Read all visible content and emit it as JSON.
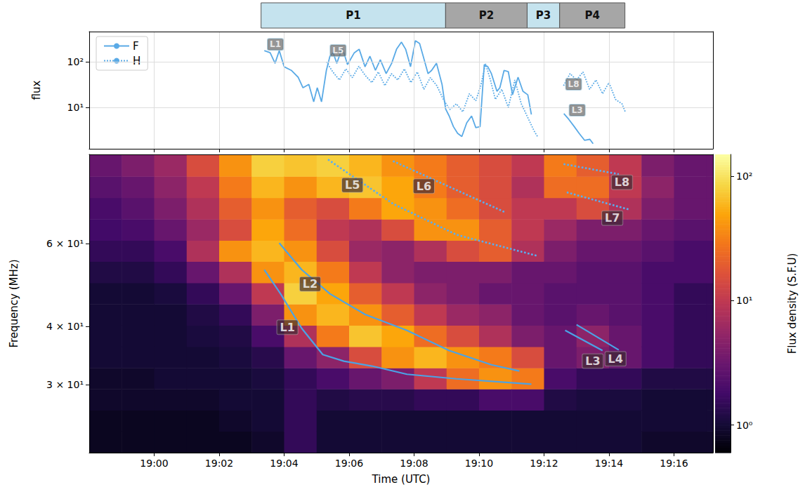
{
  "chart_data": [
    {
      "type": "line",
      "ylabel": "flux",
      "xlim": [
        1138,
        1157.2
      ],
      "ylim": [
        1.24,
        460
      ],
      "xticks": [
        1140,
        1142,
        1144,
        1146,
        1148,
        1150,
        1152,
        1154,
        1156
      ],
      "yticks": [
        {
          "value": 10,
          "label": "10¹"
        },
        {
          "value": 100,
          "label": "10²"
        }
      ],
      "log": "y",
      "grid": true,
      "legend": "upper left",
      "tick_labels": "y",
      "phases": [
        {
          "label": "P1",
          "start": 1143.29,
          "end": 1148.97,
          "color": "#c5e3ee"
        },
        {
          "label": "P2",
          "start": 1148.97,
          "end": 1151.48,
          "color": "#a6a6a6"
        },
        {
          "label": "P3",
          "start": 1151.48,
          "end": 1152.48,
          "color": "#c5e3ee"
        },
        {
          "label": "P4",
          "start": 1152.48,
          "end": 1154.49,
          "color": "#a6a6a6"
        }
      ],
      "series": [
        {
          "name": "F",
          "color": "#5aaae6",
          "line_style": "solid",
          "x": [
            1143.39,
            1143.57,
            1143.72,
            1143.85,
            1144.0,
            1144.22,
            1144.43,
            1144.58,
            1144.76,
            1144.91,
            1145.02,
            1145.15,
            1145.3,
            1145.41,
            1145.51,
            1145.62,
            1145.79,
            1145.95,
            1146.16,
            1146.31,
            1146.49,
            1146.64,
            1146.81,
            1146.96,
            1147.14,
            1147.31,
            1147.46,
            1147.61,
            1147.74,
            1147.89,
            1148.04,
            1148.17,
            1148.28,
            1148.43,
            1148.54,
            1148.69,
            1148.86,
            1148.97,
            1149.08,
            1149.21,
            1149.34,
            1149.47,
            1149.62,
            1149.77,
            1149.9,
            1150.03,
            1150.16,
            1150.27,
            1150.38,
            1150.55,
            1150.64,
            1150.77,
            1150.9,
            1151.03,
            1151.2,
            1151.35,
            1151.5,
            1151.61,
            1152.1,
            1152.61,
            1152.76,
            1152.93,
            1153.08,
            1153.25,
            1153.41,
            1153.51
          ],
          "values": [
            176,
            158,
            93,
            176,
            78,
            65,
            46,
            27,
            32,
            13.3,
            27,
            13.3,
            65,
            133,
            158,
            93,
            203,
            87,
            158,
            189,
            78,
            133,
            65,
            111,
            55,
            93,
            189,
            270,
            189,
            78,
            290,
            251,
            133,
            55,
            65,
            93,
            32,
            9.3,
            6.5,
            3.8,
            2.7,
            2.3,
            4.6,
            6.5,
            3.6,
            3.8,
            87,
            78,
            55,
            22.6,
            27,
            65,
            61,
            18.9,
            46,
            22.6,
            18.9,
            7.0,
            null,
            7.3,
            5.5,
            3.8,
            2.7,
            1.9,
            2.0,
            1.6
          ]
        },
        {
          "name": "H",
          "color": "#5aaae6",
          "line_style": "dotted",
          "x": [
            1145.3,
            1145.5,
            1145.7,
            1145.9,
            1146.1,
            1146.3,
            1146.5,
            1146.7,
            1146.9,
            1147.1,
            1147.3,
            1147.5,
            1147.7,
            1147.9,
            1148.1,
            1148.3,
            1148.5,
            1148.7,
            1148.9,
            1149.1,
            1149.3,
            1149.5,
            1149.7,
            1149.9,
            1150.05,
            1150.2,
            1150.35,
            1150.5,
            1150.7,
            1150.9,
            1151.1,
            1151.3,
            1151.5,
            1151.7,
            1151.8,
            1152.2,
            1152.6,
            1152.8,
            1153.0,
            1153.2,
            1153.4,
            1153.6,
            1153.8,
            1154.0,
            1154.2,
            1154.4,
            1154.5
          ],
          "values": [
            100,
            60,
            40,
            70,
            45,
            80,
            50,
            35,
            60,
            30,
            55,
            40,
            70,
            35,
            60,
            25,
            45,
            30,
            15,
            9,
            12,
            8,
            20,
            14,
            30,
            90,
            40,
            15,
            25,
            10,
            40,
            12,
            6,
            3,
            2.3,
            null,
            30,
            55,
            40,
            60,
            25,
            40,
            20,
            35,
            15,
            12,
            8
          ]
        }
      ],
      "annotations": [
        {
          "text": "L1",
          "x": 1143.73,
          "y": 242
        },
        {
          "text": "L5",
          "x": 1145.66,
          "y": 176
        },
        {
          "text": "L8",
          "x": 1152.91,
          "y": 32.2
        },
        {
          "text": "L3",
          "x": 1153.02,
          "y": 8.7
        }
      ]
    },
    {
      "type": "heatmap",
      "xlabel": "Time (UTC)",
      "ylabel": "Frequency (MHz)",
      "xlim": [
        1138,
        1157.2
      ],
      "ylim": [
        21.5,
        93
      ],
      "xticks": [
        {
          "value": 1140,
          "label": "19:00"
        },
        {
          "value": 1142,
          "label": "19:02"
        },
        {
          "value": 1144,
          "label": "19:04"
        },
        {
          "value": 1146,
          "label": "19:06"
        },
        {
          "value": 1148,
          "label": "19:08"
        },
        {
          "value": 1150,
          "label": "19:10"
        },
        {
          "value": 1152,
          "label": "19:12"
        },
        {
          "value": 1154,
          "label": "19:14"
        },
        {
          "value": 1156,
          "label": "19:16"
        }
      ],
      "yticks": [
        {
          "value": 30,
          "label": "3 × 10¹"
        },
        {
          "value": 40,
          "label": "4 × 10¹"
        },
        {
          "value": 60,
          "label": "6 × 10¹"
        }
      ],
      "log": "y",
      "grid": false,
      "time_edges": [
        1138,
        1139,
        1140,
        1141,
        1142,
        1143,
        1144,
        1145,
        1146,
        1147,
        1148,
        1149,
        1150,
        1151,
        1152,
        1153,
        1154,
        1155,
        1156,
        1157,
        1157.2
      ],
      "freq_edges": [
        21.5,
        23.9,
        26.5,
        29.4,
        32.6,
        36.2,
        40.2,
        44.6,
        49.5,
        55.0,
        61.0,
        67.7,
        75.2,
        83.5,
        93.0
      ],
      "values": [
        [
          0.8,
          0.8,
          0.9,
          0.9,
          1,
          1,
          1,
          1,
          1.2,
          1.5,
          1.8,
          2,
          2.5,
          3
        ],
        [
          0.8,
          0.8,
          0.9,
          0.9,
          1,
          1,
          1,
          1,
          1.2,
          1.5,
          2,
          2.5,
          3,
          4
        ],
        [
          0.8,
          0.8,
          0.9,
          1,
          1,
          1,
          1,
          1.1,
          1.5,
          2,
          3,
          4,
          5,
          6
        ],
        [
          0.8,
          0.8,
          0.9,
          1,
          1,
          1.1,
          1.2,
          1.5,
          3,
          8,
          6,
          8,
          10,
          15
        ],
        [
          0.8,
          0.9,
          1,
          1,
          1.1,
          1.2,
          1.5,
          3,
          8,
          40,
          15,
          20,
          30,
          40
        ],
        [
          0.9,
          1,
          1,
          1.1,
          1.3,
          2,
          4,
          10,
          40,
          60,
          50,
          40,
          60,
          80
        ],
        [
          1.5,
          1.5,
          1.5,
          1.5,
          3,
          8,
          40,
          80,
          60,
          40,
          25,
          20,
          40,
          70
        ],
        [
          1,
          1,
          1.2,
          2,
          5,
          30,
          60,
          50,
          30,
          15,
          10,
          15,
          60,
          80
        ],
        [
          1,
          1,
          1.3,
          3,
          15,
          70,
          40,
          20,
          10,
          6,
          8,
          30,
          70,
          60
        ],
        [
          1,
          1,
          1.3,
          4,
          40,
          50,
          20,
          10,
          5,
          5,
          15,
          50,
          50,
          40
        ],
        [
          1,
          1,
          1.5,
          10,
          60,
          25,
          10,
          5,
          4,
          8,
          40,
          40,
          30,
          30
        ],
        [
          1,
          1,
          1.5,
          25,
          40,
          15,
          6,
          4,
          4,
          15,
          40,
          25,
          20,
          20
        ],
        [
          1,
          1,
          2,
          40,
          30,
          8,
          5,
          3,
          4,
          20,
          20,
          15,
          15,
          15
        ],
        [
          1,
          1,
          2,
          30,
          15,
          4,
          3,
          3,
          3,
          8,
          10,
          10,
          8,
          10
        ],
        [
          1,
          1,
          1.2,
          2,
          3,
          3,
          2.5,
          2.5,
          3,
          4,
          6,
          10,
          25,
          30
        ],
        [
          1,
          1,
          1.1,
          1.5,
          4,
          5,
          3,
          2.5,
          2.5,
          3,
          4,
          15,
          25,
          20
        ],
        [
          1,
          1,
          1.1,
          1.5,
          3,
          3,
          2.5,
          2.5,
          2.5,
          3,
          4,
          8,
          10,
          10
        ],
        [
          0.9,
          1,
          1,
          1.2,
          2,
          2,
          2,
          2,
          2,
          2.5,
          3,
          4,
          5,
          4
        ],
        [
          0.9,
          1,
          1,
          1.2,
          1.5,
          1.5,
          1.5,
          1.5,
          2,
          2,
          2.5,
          3,
          3,
          3
        ],
        [
          0.9,
          1,
          1,
          1.2,
          1.5,
          1.5,
          1.5,
          1.5,
          2,
          2,
          2.5,
          3,
          3,
          3
        ]
      ],
      "colorbar": {
        "label": "Flux density (S.F.U)",
        "range": [
          0.6,
          150
        ],
        "ticks": [
          {
            "value": 1,
            "label": "10⁰"
          },
          {
            "value": 10,
            "label": "10¹"
          },
          {
            "value": 100,
            "label": "10²"
          }
        ]
      },
      "tracks": [
        {
          "text": "L1",
          "color": "#4ba3e6",
          "line_style": "solid",
          "x": [
            1143.39,
            1143.89,
            1144.54,
            1145.19,
            1145.84,
            1146.7,
            1147.78,
            1149.3,
            1151.61
          ],
          "values": [
            52.8,
            46.9,
            39.6,
            34.8,
            33.7,
            32.9,
            31.6,
            30.9,
            30.1
          ],
          "label_x": 1144.1,
          "label_y": 39.8
        },
        {
          "text": "L2",
          "color": "#4ba3e6",
          "line_style": "solid",
          "x": [
            1143.85,
            1144.54,
            1145.41,
            1146.49,
            1147.78,
            1149.08,
            1150.38,
            1151.24
          ],
          "values": [
            60.2,
            52.8,
            46.9,
            42.4,
            39.2,
            35.5,
            33.1,
            32.1
          ],
          "label_x": 1144.8,
          "label_y": 49.2
        },
        {
          "text": "L3",
          "color": "#4ba3e6",
          "line_style": "solid",
          "x": [
            1152.65,
            1153.8
          ],
          "values": [
            39.2,
            35.5
          ],
          "label_x": 1153.5,
          "label_y": 33.7
        },
        {
          "text": "L4",
          "color": "#4ba3e6",
          "line_style": "solid",
          "x": [
            1153.0,
            1154.3
          ],
          "values": [
            40.3,
            35.6
          ],
          "label_x": 1154.2,
          "label_y": 34.1
        },
        {
          "text": "L5",
          "color": "#5aaef0",
          "line_style": "dotted",
          "x": [
            1145.35,
            1147.35,
            1149.3,
            1151.8
          ],
          "values": [
            90.7,
            73.0,
            62.7,
            56.5
          ],
          "label_x": 1146.1,
          "label_y": 80.0
        },
        {
          "text": "L6",
          "color": "#5aaef0",
          "line_style": "dotted",
          "x": [
            1147.35,
            1150.8
          ],
          "values": [
            90,
            70
          ],
          "label_x": 1148.3,
          "label_y": 79.6
        },
        {
          "text": "L7",
          "color": "#5aaef0",
          "line_style": "dotted",
          "x": [
            1152.7,
            1154.6
          ],
          "values": [
            77.2,
            71
          ],
          "label_x": 1154.1,
          "label_y": 68.0
        },
        {
          "text": "L8",
          "color": "#5aaef0",
          "line_style": "dotted",
          "x": [
            1152.6,
            1154.3
          ],
          "values": [
            88.7,
            84.4
          ],
          "label_x": 1154.4,
          "label_y": 81.1
        }
      ]
    }
  ]
}
